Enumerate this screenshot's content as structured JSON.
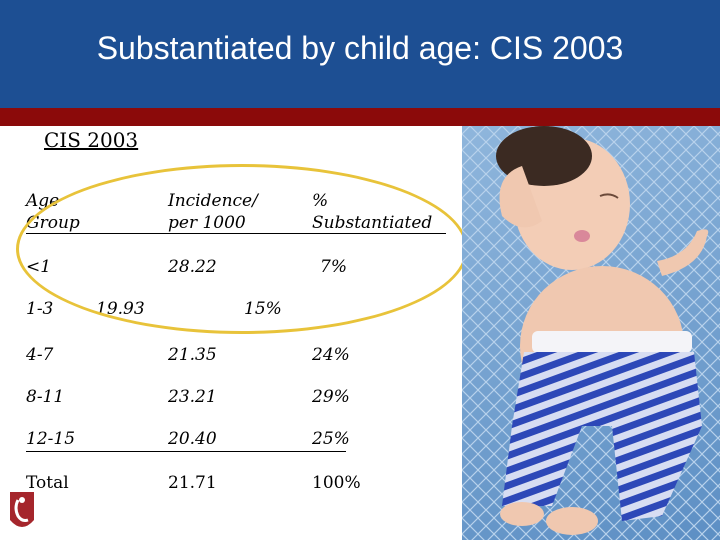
{
  "header": {
    "title": "Substantiated by child age: CIS 2003"
  },
  "subtitle": "CIS 2003",
  "table": {
    "headers": {
      "age_line1": "Age",
      "age_line2": "Group",
      "incidence_line1": "Incidence/",
      "incidence_line2": "per 1000",
      "pct_line1": "%",
      "pct_line2": "Substantiated"
    },
    "rows": [
      {
        "age": "<1",
        "incidence": "28.22",
        "pct": "7%"
      },
      {
        "age": "1-3",
        "incidence": "19.93",
        "pct": "15%"
      },
      {
        "age": "4-7",
        "incidence": "21.35",
        "pct": "24%"
      },
      {
        "age": "8-11",
        "incidence": "23.21",
        "pct": "29%"
      },
      {
        "age": "12-15",
        "incidence": "20.40",
        "pct": "25%"
      },
      {
        "age": "Total",
        "incidence": "21.71",
        "pct": "100%"
      }
    ]
  },
  "colors": {
    "header_blue": "#1d4f93",
    "header_red": "#8b0a0a",
    "highlight_oval": "#e8c33a"
  },
  "icons": {
    "logo": "seal-logo-icon"
  }
}
